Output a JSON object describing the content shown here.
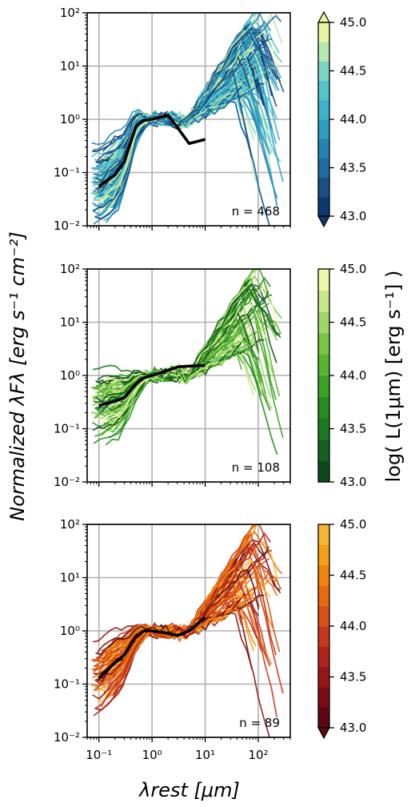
{
  "figure": {
    "xlabel": "λrest [μm]",
    "ylabel": "Normalized λFλ [erg s⁻¹ cm⁻²]",
    "colorbar_label": "log( L(1μm) [erg s⁻¹] )"
  },
  "chart_data": [
    {
      "type": "line",
      "panel": "top",
      "xscale": "log",
      "yscale": "log",
      "xlim": [
        0.06,
        400
      ],
      "ylim": [
        0.01,
        100
      ],
      "x_ticks": [
        "10⁻¹",
        "10⁰",
        "10¹",
        "10²"
      ],
      "y_ticks": [
        "10⁻²",
        "10⁻¹",
        "10⁰",
        "10¹",
        "10²"
      ],
      "grid": true,
      "annotation": "n = 468",
      "colormap": "blues (YlGnBu)",
      "colorbar": {
        "range": [
          43.0,
          45.0
        ],
        "ticks": [
          "43.0",
          "43.5",
          "44.0",
          "44.5",
          "45.0"
        ],
        "extend": "both",
        "colors": [
          "#0b3a6e",
          "#184f86",
          "#1f6aa0",
          "#2384b3",
          "#2c9ec4",
          "#3cb3cc",
          "#52c4cc",
          "#7bd5c3",
          "#b5e8b0",
          "#e6f7a0"
        ]
      },
      "median": {
        "x": [
          0.1,
          0.2,
          0.3,
          0.5,
          0.7,
          1.0,
          2.0,
          3.0,
          5.0,
          10.0
        ],
        "y": [
          0.055,
          0.09,
          0.16,
          0.75,
          0.95,
          1.0,
          1.2,
          0.7,
          0.35,
          0.42
        ]
      }
    },
    {
      "type": "line",
      "panel": "middle",
      "xscale": "log",
      "yscale": "log",
      "xlim": [
        0.06,
        400
      ],
      "ylim": [
        0.01,
        100
      ],
      "x_ticks": [
        "10⁻¹",
        "10⁰",
        "10¹",
        "10²"
      ],
      "y_ticks": [
        "10⁻²",
        "10⁻¹",
        "10⁰",
        "10¹",
        "10²"
      ],
      "grid": true,
      "annotation": "n = 108",
      "colormap": "greens",
      "colorbar": {
        "range": [
          43.0,
          45.0
        ],
        "ticks": [
          "43.0",
          "43.5",
          "44.0",
          "44.5",
          "45.0"
        ],
        "extend": "neither",
        "colors": [
          "#0d4a1a",
          "#14611f",
          "#1b7a1e",
          "#268e1c",
          "#3ba322",
          "#57b52e",
          "#79c646",
          "#9ed765",
          "#c4e88a",
          "#eef7a8"
        ]
      },
      "median": {
        "x": [
          0.1,
          0.2,
          0.3,
          0.5,
          0.7,
          1.0,
          2.0,
          3.0,
          5.0,
          10.0
        ],
        "y": [
          0.27,
          0.33,
          0.38,
          0.7,
          0.9,
          1.0,
          1.25,
          1.45,
          1.5,
          1.55
        ]
      }
    },
    {
      "type": "line",
      "panel": "bottom",
      "xscale": "log",
      "yscale": "log",
      "xlim": [
        0.06,
        400
      ],
      "ylim": [
        0.01,
        100
      ],
      "x_ticks": [
        "10⁻¹",
        "10⁰",
        "10¹",
        "10²"
      ],
      "y_ticks": [
        "10⁻²",
        "10⁻¹",
        "10⁰",
        "10¹",
        "10²"
      ],
      "grid": true,
      "annotation": "n = 89",
      "colormap": "reds-oranges (YlOrRd)",
      "colorbar": {
        "range": [
          43.0,
          45.0
        ],
        "ticks": [
          "43.0",
          "43.5",
          "44.0",
          "44.5",
          "45.0"
        ],
        "extend": "min",
        "colors": [
          "#5e0710",
          "#7a0d12",
          "#961616",
          "#b12319",
          "#c9371a",
          "#dc4f14",
          "#e8690e",
          "#f0840a",
          "#f59f14",
          "#f7b632"
        ]
      },
      "median": {
        "x": [
          0.1,
          0.2,
          0.3,
          0.5,
          0.7,
          1.0,
          2.0,
          3.0,
          5.0,
          10.0
        ],
        "y": [
          0.13,
          0.25,
          0.35,
          0.8,
          1.0,
          1.0,
          0.9,
          0.82,
          1.0,
          1.8
        ]
      }
    }
  ]
}
